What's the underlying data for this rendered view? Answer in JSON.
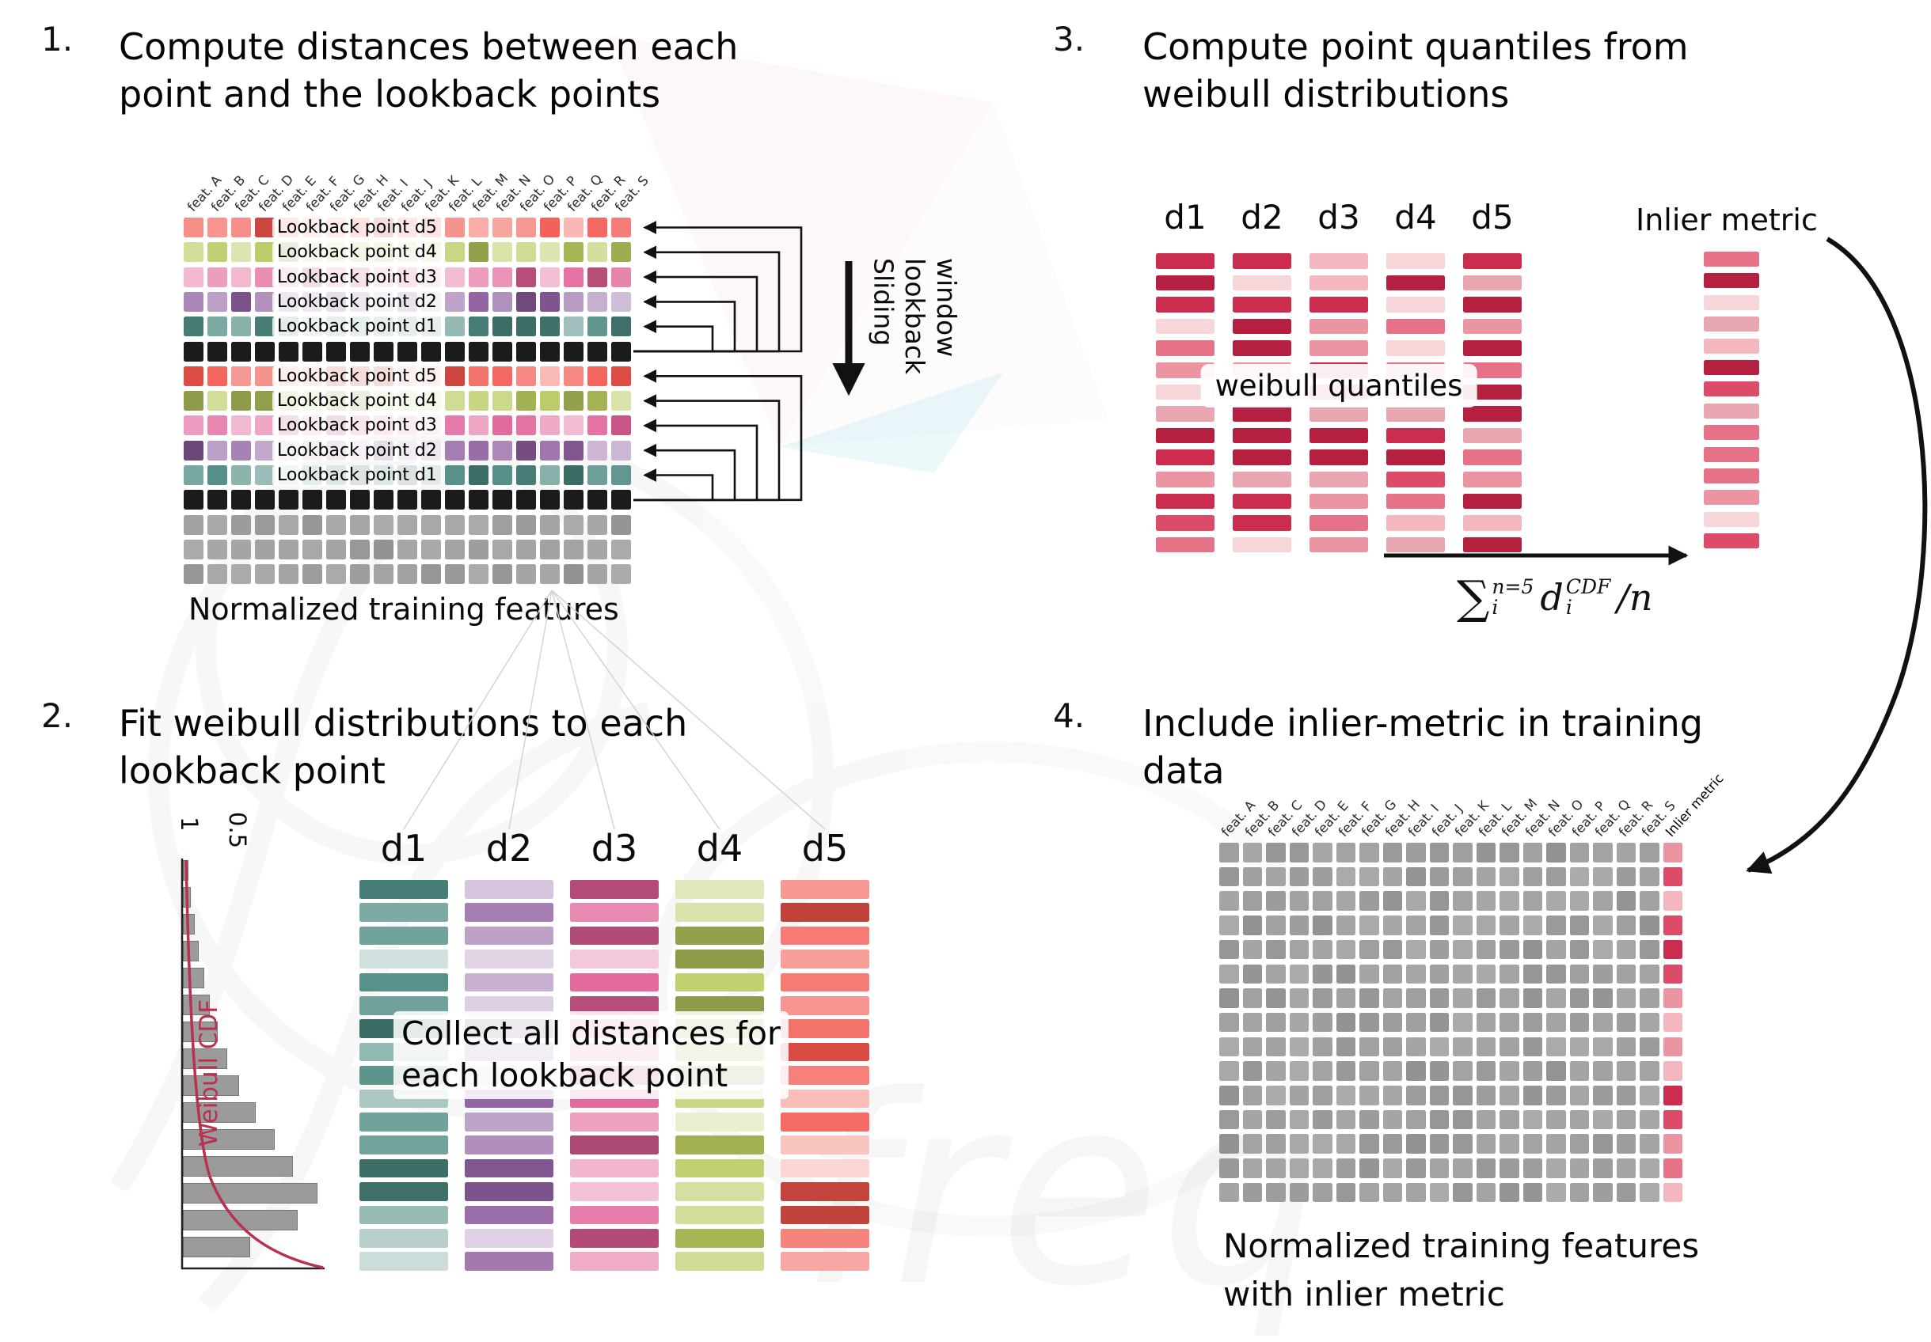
{
  "panel1": {
    "number": "1.",
    "title": "Compute distances between each\npoint and the lookback points",
    "columns": [
      "feat. A",
      "feat. B",
      "feat. C",
      "feat. D",
      "feat. E",
      "feat. F",
      "feat. G",
      "feat. H",
      "feat. I",
      "feat. J",
      "feat. K",
      "feat. L",
      "feat. M",
      "feat. N",
      "feat. O",
      "feat. P",
      "feat. Q",
      "feat. R",
      "feat. S"
    ],
    "rows": [
      {
        "kind": "lookback",
        "color": "d5",
        "label": "Lookback point d5"
      },
      {
        "kind": "lookback",
        "color": "d4",
        "label": "Lookback point d4"
      },
      {
        "kind": "lookback",
        "color": "d3",
        "label": "Lookback point d3"
      },
      {
        "kind": "lookback",
        "color": "d2",
        "label": "Lookback point d2"
      },
      {
        "kind": "lookback",
        "color": "d1",
        "label": "Lookback point d1"
      },
      {
        "kind": "black"
      },
      {
        "kind": "lookback",
        "color": "d5",
        "label": "Lookback point d5"
      },
      {
        "kind": "lookback",
        "color": "d4",
        "label": "Lookback point d4"
      },
      {
        "kind": "lookback",
        "color": "d3",
        "label": "Lookback point d3"
      },
      {
        "kind": "lookback",
        "color": "d2",
        "label": "Lookback point d2"
      },
      {
        "kind": "lookback",
        "color": "d1",
        "label": "Lookback point d1"
      },
      {
        "kind": "black"
      },
      {
        "kind": "gray"
      },
      {
        "kind": "gray"
      },
      {
        "kind": "gray"
      }
    ],
    "caption": "Normalized training features",
    "sliding_label": "Sliding\nlookback\nwindow"
  },
  "panel2": {
    "number": "2.",
    "title": "Fit weibull distributions to each\nlookback point",
    "column_labels": [
      "d1",
      "d2",
      "d3",
      "d4",
      "d5"
    ],
    "overlay": "Collect all distances for\neach lookback point",
    "weibull": {
      "label": "Weibull CDF",
      "tick_1": "1",
      "tick_05": "0.5",
      "bars": [
        0.04,
        0.06,
        0.09,
        0.12,
        0.16,
        0.2,
        0.26,
        0.33,
        0.42,
        0.54,
        0.68,
        0.82,
        1.0,
        0.85,
        0.5
      ]
    }
  },
  "panel3": {
    "number": "3.",
    "title": "Compute point quantiles from\nweibull distributions",
    "column_labels": [
      "d1",
      "d2",
      "d3",
      "d4",
      "d5"
    ],
    "overlay": "weibull quantiles",
    "inlier_label": "Inlier metric",
    "formula": {
      "sum": "∑",
      "sum_sup": "n=5",
      "sum_sub": "i",
      "var": "d",
      "var_sup": "CDF",
      "var_sub": "i",
      "tail": "/n"
    }
  },
  "panel4": {
    "number": "4.",
    "title": "Include inlier-metric in training\ndata",
    "columns": [
      "feat. A",
      "feat. B",
      "feat. C",
      "feat. D",
      "feat. E",
      "feat. F",
      "feat. G",
      "feat. H",
      "feat. I",
      "feat. J",
      "feat. K",
      "feat. L",
      "feat. M",
      "feat. N",
      "feat. O",
      "feat. P",
      "feat. Q",
      "feat. R",
      "feat. S",
      "Inlier metric"
    ],
    "caption": "Normalized training features\nwith inlier metric"
  },
  "watermark": {
    "text": "freq"
  },
  "colors": {
    "d1": "#4d8a82",
    "d2": "#8d5d9e",
    "d3": "#e05f96",
    "d4": "#b9c95e",
    "d5": "#f2544b",
    "black": "#1b1b1b",
    "gray": "#a3a2a0",
    "red_palette": [
      "#f7d6da",
      "#f3b7bf",
      "#eb95a2",
      "#e57286",
      "#dc4b67",
      "#cc2c4e",
      "#b52040",
      "#e8a7b0"
    ],
    "curve": "#b9314f",
    "arrow": "#111111"
  }
}
